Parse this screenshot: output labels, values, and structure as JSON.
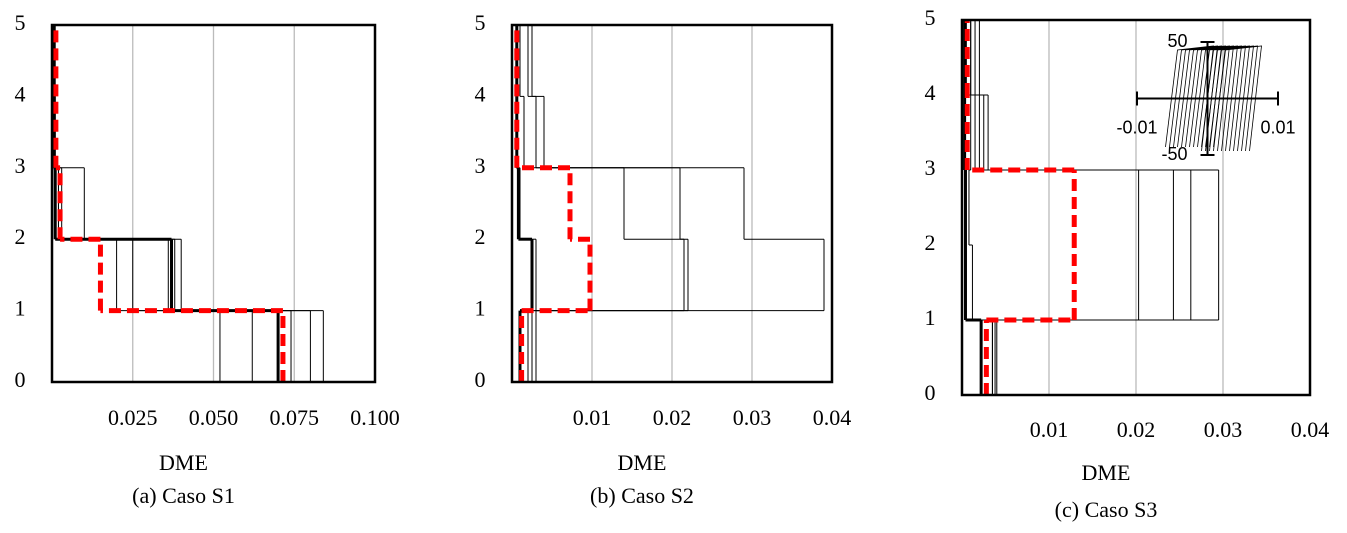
{
  "chart_data": [
    {
      "type": "step",
      "xlabel": "DME",
      "caption": "(a) Caso S1",
      "xlim": [
        0,
        0.1
      ],
      "xticks": [
        0.025,
        {
          "value": 0.05,
          "label": "0.050"
        },
        0.075,
        {
          "value": 0.1,
          "label": "0.100"
        }
      ],
      "ylim": [
        0,
        5
      ],
      "yticks": [
        0,
        1,
        2,
        3,
        4,
        5
      ],
      "grid": true,
      "series": [
        {
          "color": "#000000",
          "style": "thin",
          "values": [
            0.052,
            0.02,
            0.01,
            0.0005,
            0.0005
          ]
        },
        {
          "color": "#000000",
          "style": "thin",
          "values": [
            0.062,
            0.036,
            0.003,
            0.0005,
            0.0005
          ]
        },
        {
          "color": "#000000",
          "style": "thin",
          "values": [
            0.074,
            0.04,
            0.002,
            0.001,
            0.001
          ]
        },
        {
          "color": "#000000",
          "style": "thin",
          "values": [
            0.08,
            0.038,
            0.001,
            0.001,
            0.0005
          ]
        },
        {
          "color": "#000000",
          "style": "thin",
          "values": [
            0.084,
            0.025,
            0.002,
            0.0005,
            0.0005
          ]
        },
        {
          "color": "#000000",
          "style": "thick",
          "values": [
            0.07,
            0.037,
            0.001,
            0.0005,
            0.0005
          ]
        },
        {
          "color": "#ff0000",
          "style": "dashed",
          "values": [
            0.0715,
            0.015,
            0.0025,
            0.0012,
            0.0012
          ]
        }
      ]
    },
    {
      "type": "step",
      "xlabel": "DME",
      "caption": "(b) Caso S2",
      "xlim": [
        0,
        0.04
      ],
      "xticks": [
        0.01,
        0.02,
        0.03,
        0.04
      ],
      "ylim": [
        0,
        5
      ],
      "yticks": [
        0,
        1,
        2,
        3,
        4,
        5
      ],
      "grid": true,
      "series": [
        {
          "color": "#000000",
          "style": "thin",
          "values": [
            0.003,
            0.039,
            0.029,
            0.003,
            0.002
          ]
        },
        {
          "color": "#000000",
          "style": "thin",
          "values": [
            0.002,
            0.0215,
            0.021,
            0.0015,
            0.001
          ]
        },
        {
          "color": "#000000",
          "style": "thin",
          "values": [
            0.0025,
            0.022,
            0.014,
            0.004,
            0.0025
          ]
        },
        {
          "color": "#000000",
          "style": "thin",
          "values": [
            0.003,
            0.003,
            0.001,
            0.0005,
            0.0005
          ]
        },
        {
          "color": "#000000",
          "style": "thick",
          "values": [
            0.001,
            0.0025,
            0.0008,
            0.0006,
            0.0006
          ]
        },
        {
          "color": "#ff0000",
          "style": "dashed",
          "values": [
            0.0012,
            0.00975,
            0.00725,
            0.0006,
            0.0006
          ]
        }
      ]
    },
    {
      "type": "step",
      "xlabel": "DME",
      "caption": "(c) Caso S3",
      "xlim": [
        0,
        0.04
      ],
      "xticks": [
        0.01,
        0.02,
        0.03,
        0.04
      ],
      "ylim": [
        0,
        5
      ],
      "yticks": [
        0,
        1,
        2,
        3,
        4,
        5
      ],
      "grid": true,
      "series": [
        {
          "color": "#000000",
          "style": "thin",
          "values": [
            0.0038,
            0.0295,
            0.0295,
            0.0025,
            0.0015
          ]
        },
        {
          "color": "#000000",
          "style": "thin",
          "values": [
            0.004,
            0.0263,
            0.0263,
            0.002,
            0.001
          ]
        },
        {
          "color": "#000000",
          "style": "thin",
          "values": [
            0.0035,
            0.0243,
            0.0243,
            0.0015,
            0.001
          ]
        },
        {
          "color": "#000000",
          "style": "thin",
          "values": [
            0.0035,
            0.0203,
            0.0203,
            0.003,
            0.002
          ]
        },
        {
          "color": "#000000",
          "style": "thin",
          "values": [
            0.0035,
            0.0012,
            0.0008,
            0.001,
            0.0005
          ]
        },
        {
          "color": "#000000",
          "style": "thick",
          "values": [
            0.0022,
            0.0004,
            0.0004,
            0.0003,
            0.0003
          ]
        },
        {
          "color": "#ff0000",
          "style": "dashed",
          "values": [
            0.0028,
            0.0129,
            0.0129,
            0.0006,
            0.0006
          ]
        }
      ],
      "inset": {
        "xlim": [
          -0.01,
          0.01
        ],
        "xticks": [
          -0.01,
          0.01
        ],
        "ylim": [
          -50,
          50
        ],
        "yticks": [
          -50,
          50
        ]
      }
    }
  ]
}
